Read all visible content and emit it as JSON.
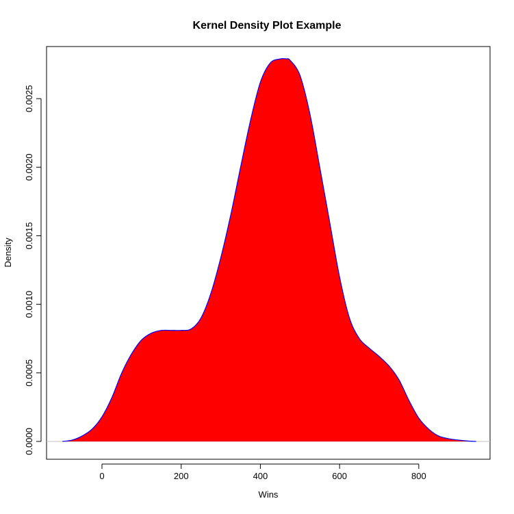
{
  "chart_data": {
    "type": "area",
    "title": "Kernel Density Plot Example",
    "xlabel": "Wins",
    "ylabel": "Density",
    "xlim": [
      -140,
      980
    ],
    "ylim": [
      -0.00013,
      0.00288
    ],
    "x_ticks": [
      0,
      200,
      400,
      600,
      800
    ],
    "x_tick_labels": [
      "0",
      "200",
      "400",
      "600",
      "800"
    ],
    "y_ticks": [
      0,
      0.0005,
      0.001,
      0.0015,
      0.002,
      0.0025
    ],
    "y_tick_labels": [
      "0.0000",
      "0.0005",
      "0.0010",
      "0.0015",
      "0.0020",
      "0.0025"
    ],
    "fill_color": "#ff0000",
    "line_color": "#0000ff",
    "baseline_color": "#c0c0c0",
    "series": [
      {
        "x": [
          -100,
          -75,
          -50,
          -25,
          0,
          25,
          50,
          75,
          100,
          125,
          150,
          175,
          200,
          225,
          250,
          275,
          300,
          325,
          350,
          375,
          400,
          425,
          450,
          465,
          475,
          500,
          525,
          550,
          575,
          600,
          625,
          650,
          675,
          700,
          725,
          750,
          775,
          800,
          825,
          850,
          875,
          900,
          925,
          945
        ],
        "y": [
          0,
          1e-05,
          4e-05,
          9e-05,
          0.00018,
          0.00032,
          0.0005,
          0.00064,
          0.00074,
          0.00079,
          0.00081,
          0.00081,
          0.00081,
          0.00082,
          0.0009,
          0.00108,
          0.00134,
          0.00165,
          0.002,
          0.00234,
          0.00262,
          0.00276,
          0.00279,
          0.00279,
          0.00278,
          0.00267,
          0.00239,
          0.002,
          0.0016,
          0.0012,
          0.0009,
          0.00075,
          0.00068,
          0.00062,
          0.00055,
          0.00045,
          0.0003,
          0.00017,
          9e-05,
          4e-05,
          2e-05,
          1e-05,
          3e-06,
          0
        ]
      }
    ]
  }
}
